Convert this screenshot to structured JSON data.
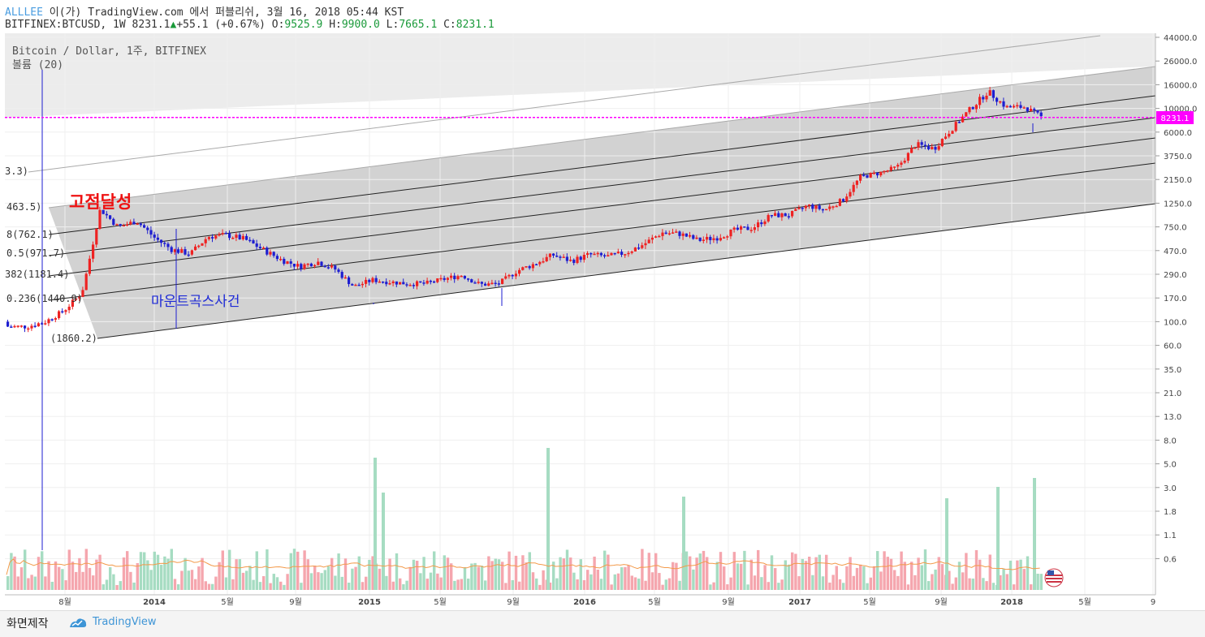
{
  "header": {
    "author": "ALLLEE",
    "publish_text": "이(가) TradingView.com 에서 퍼블리쉬, 3월 16, 2018 05:44 KST",
    "symbol": "BITFINEX:BTCUSD, 1W",
    "price": "8231.1",
    "change_arrow": "▲",
    "change": "+55.1 (+0.67%)",
    "o_label": "O:",
    "o_val": "9525.9",
    "h_label": "H:",
    "h_val": "9900.0",
    "l_label": "L:",
    "l_val": "7665.1",
    "c_label": "C:",
    "c_val": "8231.1"
  },
  "legend": {
    "series_title": "Bitcoin / Dollar, 1주, BITFINEX",
    "volume_title": "볼륨 (20)"
  },
  "annotations": {
    "ath": "고점달성",
    "mtgox": "마운트곡스사건"
  },
  "footer": {
    "snapshot": "화면제작",
    "brand": "TradingView"
  },
  "colors": {
    "up": "#ee2222",
    "down": "#1e1ed0",
    "price_line": "#ff00ff",
    "vol_up": "#f5a6ae",
    "vol_down": "#a6dcc2",
    "vol_ma": "#f39a4a"
  },
  "chart_data": {
    "type": "candlestick",
    "symbol": "BITFINEX:BTCUSD",
    "interval": "1W",
    "y_scale": "log",
    "last_price": "8231.1",
    "y_ticks": [
      "44000.0",
      "26000.0",
      "16000.0",
      "10000.0",
      "6000.0",
      "3750.0",
      "2150.0",
      "1250.0",
      "750.0",
      "470.0",
      "290.0",
      "170.0",
      "100.0",
      "60.0",
      "35.0",
      "21.0",
      "13.0",
      "8.0",
      "5.0",
      "3.0",
      "1.8",
      "1.1",
      "0.6"
    ],
    "x_ticks": [
      "8월",
      "2014",
      "5월",
      "9월",
      "2015",
      "5월",
      "9월",
      "2016",
      "5월",
      "9월",
      "2017",
      "5월",
      "9월",
      "2018",
      "5월",
      "9"
    ],
    "fib_labels": [
      "3.3)",
      "463.5)",
      "8(762.1)",
      "0.5(971.7)",
      "382(1181.4)",
      "0.236(1440.9)",
      "(1860.2)"
    ],
    "price_series": [
      {
        "date": "2013-07",
        "close": 90
      },
      {
        "date": "2013-08",
        "close": 100
      },
      {
        "date": "2013-09",
        "close": 128
      },
      {
        "date": "2013-10",
        "close": 190
      },
      {
        "date": "2013-11",
        "close": 1100
      },
      {
        "date": "2013-12",
        "close": 750
      },
      {
        "date": "2014-01",
        "close": 850
      },
      {
        "date": "2014-02",
        "close": 600
      },
      {
        "date": "2014-03",
        "close": 480
      },
      {
        "date": "2014-04",
        "close": 440
      },
      {
        "date": "2014-05",
        "close": 620
      },
      {
        "date": "2014-06",
        "close": 640
      },
      {
        "date": "2014-07",
        "close": 590
      },
      {
        "date": "2014-08",
        "close": 480
      },
      {
        "date": "2014-09",
        "close": 390
      },
      {
        "date": "2014-10",
        "close": 340
      },
      {
        "date": "2014-11",
        "close": 375
      },
      {
        "date": "2014-12",
        "close": 320
      },
      {
        "date": "2015-01",
        "close": 220
      },
      {
        "date": "2015-02",
        "close": 255
      },
      {
        "date": "2015-03",
        "close": 245
      },
      {
        "date": "2015-04",
        "close": 235
      },
      {
        "date": "2015-05",
        "close": 235
      },
      {
        "date": "2015-06",
        "close": 260
      },
      {
        "date": "2015-07",
        "close": 285
      },
      {
        "date": "2015-08",
        "close": 230
      },
      {
        "date": "2015-09",
        "close": 235
      },
      {
        "date": "2015-10",
        "close": 310
      },
      {
        "date": "2015-11",
        "close": 360
      },
      {
        "date": "2015-12",
        "close": 430
      },
      {
        "date": "2016-01",
        "close": 380
      },
      {
        "date": "2016-02",
        "close": 435
      },
      {
        "date": "2016-03",
        "close": 415
      },
      {
        "date": "2016-04",
        "close": 450
      },
      {
        "date": "2016-05",
        "close": 530
      },
      {
        "date": "2016-06",
        "close": 670
      },
      {
        "date": "2016-07",
        "close": 655
      },
      {
        "date": "2016-08",
        "close": 575
      },
      {
        "date": "2016-09",
        "close": 608
      },
      {
        "date": "2016-10",
        "close": 700
      },
      {
        "date": "2016-11",
        "close": 740
      },
      {
        "date": "2016-12",
        "close": 960
      },
      {
        "date": "2017-01",
        "close": 970
      },
      {
        "date": "2017-02",
        "close": 1190
      },
      {
        "date": "2017-03",
        "close": 1080
      },
      {
        "date": "2017-04",
        "close": 1350
      },
      {
        "date": "2017-05",
        "close": 2300
      },
      {
        "date": "2017-06",
        "close": 2500
      },
      {
        "date": "2017-07",
        "close": 2870
      },
      {
        "date": "2017-08",
        "close": 4700
      },
      {
        "date": "2017-09",
        "close": 4330
      },
      {
        "date": "2017-10",
        "close": 6450
      },
      {
        "date": "2017-11",
        "close": 9900
      },
      {
        "date": "2017-12",
        "close": 14000
      },
      {
        "date": "2018-01",
        "close": 10200
      },
      {
        "date": "2018-02",
        "close": 10300
      },
      {
        "date": "2018-03",
        "close": 8231.1
      }
    ]
  }
}
